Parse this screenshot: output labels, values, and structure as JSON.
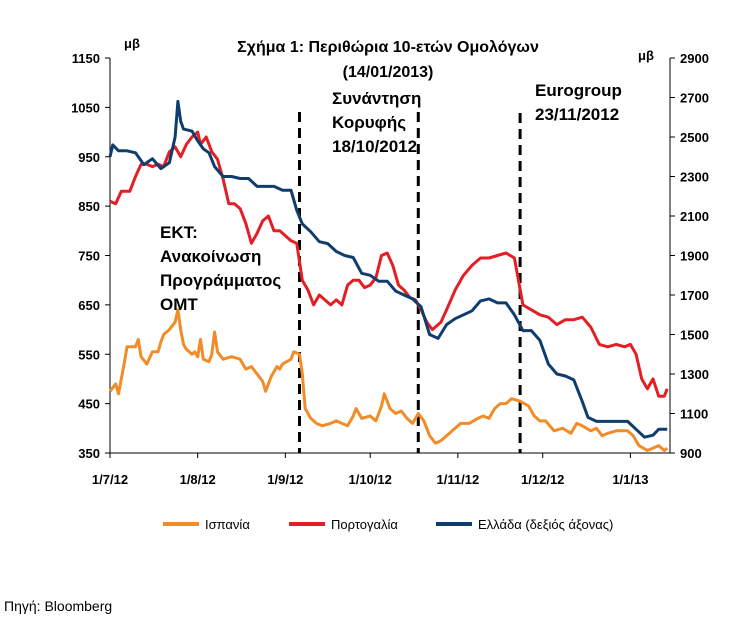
{
  "chart_data": {
    "type": "line",
    "title": "Σχήμα 1: Περιθώρια 10-ετών Ομολόγων",
    "subtitle": "(14/01/2013)",
    "left_axis_unit": "μβ",
    "right_axis_unit": "μβ",
    "y_left": {
      "min": 350,
      "max": 1150,
      "ticks": [
        350,
        450,
        550,
        650,
        750,
        850,
        950,
        1050,
        1150
      ]
    },
    "y_right": {
      "min": 900,
      "max": 2900,
      "ticks": [
        900,
        1100,
        1300,
        1500,
        1700,
        1900,
        2100,
        2300,
        2500,
        2700,
        2900
      ]
    },
    "x_range": [
      "2012-07-01",
      "2013-01-15"
    ],
    "x_ticks": [
      {
        "date": "2012-07-01",
        "label": "1/7/12"
      },
      {
        "date": "2012-08-01",
        "label": "1/8/12"
      },
      {
        "date": "2012-09-01",
        "label": "1/9/12"
      },
      {
        "date": "2012-10-01",
        "label": "1/10/12"
      },
      {
        "date": "2012-11-01",
        "label": "1/11/12"
      },
      {
        "date": "2012-12-01",
        "label": "1/12/12"
      },
      {
        "date": "2013-01-01",
        "label": "1/1/13"
      }
    ],
    "annotations": [
      {
        "date": "2012-09-06",
        "lines": [
          "ΕΚΤ:",
          "Ανακοίνωση",
          "Προγράμματος",
          "OMT"
        ]
      },
      {
        "date": "2012-10-18",
        "lines": [
          "Συνάντηση",
          "Κορυφής",
          "18/10/2012"
        ]
      },
      {
        "date": "2012-11-23",
        "lines": [
          "Eurogroup",
          "23/11/2012"
        ]
      }
    ],
    "series": [
      {
        "name": "Ισπανία",
        "axis": "left",
        "color": "#F28C28",
        "points": [
          [
            "2012-07-01",
            475
          ],
          [
            "2012-07-03",
            490
          ],
          [
            "2012-07-04",
            470
          ],
          [
            "2012-07-06",
            530
          ],
          [
            "2012-07-07",
            565
          ],
          [
            "2012-07-10",
            565
          ],
          [
            "2012-07-11",
            580
          ],
          [
            "2012-07-12",
            545
          ],
          [
            "2012-07-14",
            530
          ],
          [
            "2012-07-16",
            555
          ],
          [
            "2012-07-18",
            555
          ],
          [
            "2012-07-19",
            575
          ],
          [
            "2012-07-20",
            590
          ],
          [
            "2012-07-22",
            600
          ],
          [
            "2012-07-24",
            615
          ],
          [
            "2012-07-25",
            640
          ],
          [
            "2012-07-26",
            600
          ],
          [
            "2012-07-27",
            570
          ],
          [
            "2012-07-28",
            560
          ],
          [
            "2012-07-30",
            550
          ],
          [
            "2012-07-31",
            555
          ],
          [
            "2012-08-01",
            545
          ],
          [
            "2012-08-02",
            580
          ],
          [
            "2012-08-03",
            540
          ],
          [
            "2012-08-05",
            535
          ],
          [
            "2012-08-06",
            550
          ],
          [
            "2012-08-07",
            595
          ],
          [
            "2012-08-08",
            555
          ],
          [
            "2012-08-10",
            540
          ],
          [
            "2012-08-13",
            545
          ],
          [
            "2012-08-16",
            540
          ],
          [
            "2012-08-18",
            520
          ],
          [
            "2012-08-20",
            525
          ],
          [
            "2012-08-22",
            510
          ],
          [
            "2012-08-24",
            495
          ],
          [
            "2012-08-25",
            475
          ],
          [
            "2012-08-27",
            505
          ],
          [
            "2012-08-29",
            525
          ],
          [
            "2012-08-30",
            520
          ],
          [
            "2012-08-31",
            530
          ],
          [
            "2012-09-03",
            540
          ],
          [
            "2012-09-04",
            555
          ],
          [
            "2012-09-06",
            550
          ],
          [
            "2012-09-07",
            510
          ],
          [
            "2012-09-08",
            440
          ],
          [
            "2012-09-10",
            420
          ],
          [
            "2012-09-12",
            410
          ],
          [
            "2012-09-14",
            405
          ],
          [
            "2012-09-17",
            410
          ],
          [
            "2012-09-19",
            415
          ],
          [
            "2012-09-21",
            410
          ],
          [
            "2012-09-23",
            405
          ],
          [
            "2012-09-25",
            425
          ],
          [
            "2012-09-26",
            440
          ],
          [
            "2012-09-28",
            420
          ],
          [
            "2012-10-01",
            425
          ],
          [
            "2012-10-03",
            415
          ],
          [
            "2012-10-05",
            445
          ],
          [
            "2012-10-06",
            470
          ],
          [
            "2012-10-08",
            440
          ],
          [
            "2012-10-10",
            430
          ],
          [
            "2012-10-12",
            435
          ],
          [
            "2012-10-14",
            420
          ],
          [
            "2012-10-16",
            410
          ],
          [
            "2012-10-18",
            430
          ],
          [
            "2012-10-20",
            415
          ],
          [
            "2012-10-22",
            385
          ],
          [
            "2012-10-24",
            370
          ],
          [
            "2012-10-26",
            375
          ],
          [
            "2012-10-28",
            385
          ],
          [
            "2012-10-30",
            395
          ],
          [
            "2012-11-02",
            410
          ],
          [
            "2012-11-05",
            410
          ],
          [
            "2012-11-08",
            420
          ],
          [
            "2012-11-10",
            425
          ],
          [
            "2012-11-12",
            420
          ],
          [
            "2012-11-14",
            440
          ],
          [
            "2012-11-16",
            450
          ],
          [
            "2012-11-18",
            450
          ],
          [
            "2012-11-20",
            460
          ],
          [
            "2012-11-23",
            455
          ],
          [
            "2012-11-26",
            445
          ],
          [
            "2012-11-28",
            425
          ],
          [
            "2012-11-30",
            415
          ],
          [
            "2012-12-02",
            415
          ],
          [
            "2012-12-05",
            395
          ],
          [
            "2012-12-08",
            400
          ],
          [
            "2012-12-11",
            390
          ],
          [
            "2012-12-13",
            410
          ],
          [
            "2012-12-15",
            405
          ],
          [
            "2012-12-18",
            395
          ],
          [
            "2012-12-20",
            400
          ],
          [
            "2012-12-22",
            385
          ],
          [
            "2012-12-24",
            390
          ],
          [
            "2012-12-27",
            395
          ],
          [
            "2012-12-31",
            395
          ],
          [
            "2013-01-02",
            385
          ],
          [
            "2013-01-04",
            365
          ],
          [
            "2013-01-07",
            355
          ],
          [
            "2013-01-09",
            360
          ],
          [
            "2013-01-11",
            365
          ],
          [
            "2013-01-13",
            355
          ],
          [
            "2013-01-14",
            360
          ]
        ]
      },
      {
        "name": "Πορτογαλία",
        "axis": "left",
        "color": "#E31E24",
        "points": [
          [
            "2012-07-01",
            860
          ],
          [
            "2012-07-03",
            855
          ],
          [
            "2012-07-05",
            880
          ],
          [
            "2012-07-08",
            880
          ],
          [
            "2012-07-10",
            910
          ],
          [
            "2012-07-12",
            935
          ],
          [
            "2012-07-14",
            935
          ],
          [
            "2012-07-16",
            930
          ],
          [
            "2012-07-18",
            935
          ],
          [
            "2012-07-20",
            930
          ],
          [
            "2012-07-22",
            960
          ],
          [
            "2012-07-24",
            970
          ],
          [
            "2012-07-26",
            950
          ],
          [
            "2012-07-28",
            975
          ],
          [
            "2012-07-30",
            990
          ],
          [
            "2012-08-01",
            1000
          ],
          [
            "2012-08-02",
            975
          ],
          [
            "2012-08-04",
            990
          ],
          [
            "2012-08-06",
            960
          ],
          [
            "2012-08-08",
            945
          ],
          [
            "2012-08-10",
            905
          ],
          [
            "2012-08-12",
            855
          ],
          [
            "2012-08-14",
            855
          ],
          [
            "2012-08-16",
            845
          ],
          [
            "2012-08-18",
            815
          ],
          [
            "2012-08-20",
            775
          ],
          [
            "2012-08-22",
            795
          ],
          [
            "2012-08-24",
            820
          ],
          [
            "2012-08-26",
            830
          ],
          [
            "2012-08-28",
            800
          ],
          [
            "2012-08-30",
            800
          ],
          [
            "2012-09-01",
            790
          ],
          [
            "2012-09-03",
            780
          ],
          [
            "2012-09-05",
            775
          ],
          [
            "2012-09-07",
            700
          ],
          [
            "2012-09-09",
            680
          ],
          [
            "2012-09-11",
            650
          ],
          [
            "2012-09-13",
            670
          ],
          [
            "2012-09-15",
            660
          ],
          [
            "2012-09-17",
            650
          ],
          [
            "2012-09-19",
            660
          ],
          [
            "2012-09-21",
            650
          ],
          [
            "2012-09-23",
            690
          ],
          [
            "2012-09-25",
            700
          ],
          [
            "2012-09-27",
            700
          ],
          [
            "2012-09-29",
            685
          ],
          [
            "2012-10-01",
            690
          ],
          [
            "2012-10-03",
            705
          ],
          [
            "2012-10-05",
            750
          ],
          [
            "2012-10-07",
            755
          ],
          [
            "2012-10-09",
            730
          ],
          [
            "2012-10-11",
            690
          ],
          [
            "2012-10-13",
            680
          ],
          [
            "2012-10-15",
            665
          ],
          [
            "2012-10-17",
            660
          ],
          [
            "2012-10-19",
            640
          ],
          [
            "2012-10-21",
            615
          ],
          [
            "2012-10-23",
            600
          ],
          [
            "2012-10-26",
            615
          ],
          [
            "2012-10-28",
            640
          ],
          [
            "2012-10-31",
            680
          ],
          [
            "2012-11-03",
            710
          ],
          [
            "2012-11-06",
            730
          ],
          [
            "2012-11-09",
            745
          ],
          [
            "2012-11-12",
            745
          ],
          [
            "2012-11-15",
            750
          ],
          [
            "2012-11-18",
            755
          ],
          [
            "2012-11-21",
            745
          ],
          [
            "2012-11-24",
            650
          ],
          [
            "2012-11-27",
            640
          ],
          [
            "2012-11-30",
            630
          ],
          [
            "2012-12-03",
            625
          ],
          [
            "2012-12-06",
            610
          ],
          [
            "2012-12-09",
            620
          ],
          [
            "2012-12-12",
            620
          ],
          [
            "2012-12-15",
            625
          ],
          [
            "2012-12-18",
            605
          ],
          [
            "2012-12-21",
            570
          ],
          [
            "2012-12-24",
            565
          ],
          [
            "2012-12-27",
            570
          ],
          [
            "2012-12-30",
            565
          ],
          [
            "2013-01-01",
            570
          ],
          [
            "2013-01-03",
            550
          ],
          [
            "2013-01-05",
            500
          ],
          [
            "2013-01-07",
            480
          ],
          [
            "2013-01-09",
            500
          ],
          [
            "2013-01-11",
            465
          ],
          [
            "2013-01-13",
            465
          ],
          [
            "2013-01-14",
            480
          ]
        ]
      },
      {
        "name": "Ελλάδα (δεξιός άξονας)",
        "axis": "right",
        "color": "#0F3D6E",
        "points": [
          [
            "2012-07-01",
            2400
          ],
          [
            "2012-07-02",
            2460
          ],
          [
            "2012-07-04",
            2430
          ],
          [
            "2012-07-07",
            2430
          ],
          [
            "2012-07-10",
            2420
          ],
          [
            "2012-07-13",
            2360
          ],
          [
            "2012-07-16",
            2390
          ],
          [
            "2012-07-19",
            2340
          ],
          [
            "2012-07-22",
            2370
          ],
          [
            "2012-07-24",
            2500
          ],
          [
            "2012-07-25",
            2680
          ],
          [
            "2012-07-26",
            2580
          ],
          [
            "2012-07-27",
            2540
          ],
          [
            "2012-07-30",
            2530
          ],
          [
            "2012-08-01",
            2480
          ],
          [
            "2012-08-03",
            2440
          ],
          [
            "2012-08-05",
            2420
          ],
          [
            "2012-08-07",
            2350
          ],
          [
            "2012-08-10",
            2300
          ],
          [
            "2012-08-13",
            2300
          ],
          [
            "2012-08-16",
            2290
          ],
          [
            "2012-08-19",
            2290
          ],
          [
            "2012-08-22",
            2250
          ],
          [
            "2012-08-25",
            2250
          ],
          [
            "2012-08-28",
            2250
          ],
          [
            "2012-08-31",
            2230
          ],
          [
            "2012-09-03",
            2230
          ],
          [
            "2012-09-05",
            2130
          ],
          [
            "2012-09-07",
            2060
          ],
          [
            "2012-09-10",
            2020
          ],
          [
            "2012-09-13",
            1970
          ],
          [
            "2012-09-16",
            1960
          ],
          [
            "2012-09-19",
            1920
          ],
          [
            "2012-09-22",
            1900
          ],
          [
            "2012-09-25",
            1890
          ],
          [
            "2012-09-28",
            1810
          ],
          [
            "2012-10-01",
            1800
          ],
          [
            "2012-10-04",
            1770
          ],
          [
            "2012-10-07",
            1770
          ],
          [
            "2012-10-10",
            1720
          ],
          [
            "2012-10-13",
            1700
          ],
          [
            "2012-10-16",
            1680
          ],
          [
            "2012-10-19",
            1640
          ],
          [
            "2012-10-22",
            1500
          ],
          [
            "2012-10-25",
            1480
          ],
          [
            "2012-10-28",
            1550
          ],
          [
            "2012-10-31",
            1580
          ],
          [
            "2012-11-03",
            1600
          ],
          [
            "2012-11-06",
            1620
          ],
          [
            "2012-11-09",
            1670
          ],
          [
            "2012-11-12",
            1680
          ],
          [
            "2012-11-15",
            1660
          ],
          [
            "2012-11-18",
            1660
          ],
          [
            "2012-11-21",
            1600
          ],
          [
            "2012-11-24",
            1520
          ],
          [
            "2012-11-27",
            1520
          ],
          [
            "2012-11-30",
            1470
          ],
          [
            "2012-12-03",
            1350
          ],
          [
            "2012-12-06",
            1300
          ],
          [
            "2012-12-09",
            1290
          ],
          [
            "2012-12-12",
            1270
          ],
          [
            "2012-12-15",
            1160
          ],
          [
            "2012-12-17",
            1080
          ],
          [
            "2012-12-20",
            1060
          ],
          [
            "2012-12-24",
            1060
          ],
          [
            "2012-12-28",
            1060
          ],
          [
            "2012-12-31",
            1060
          ],
          [
            "2013-01-03",
            1020
          ],
          [
            "2013-01-06",
            980
          ],
          [
            "2013-01-09",
            990
          ],
          [
            "2013-01-11",
            1020
          ],
          [
            "2013-01-14",
            1020
          ]
        ]
      }
    ]
  },
  "source_text": "Πηγή: Bloomberg"
}
